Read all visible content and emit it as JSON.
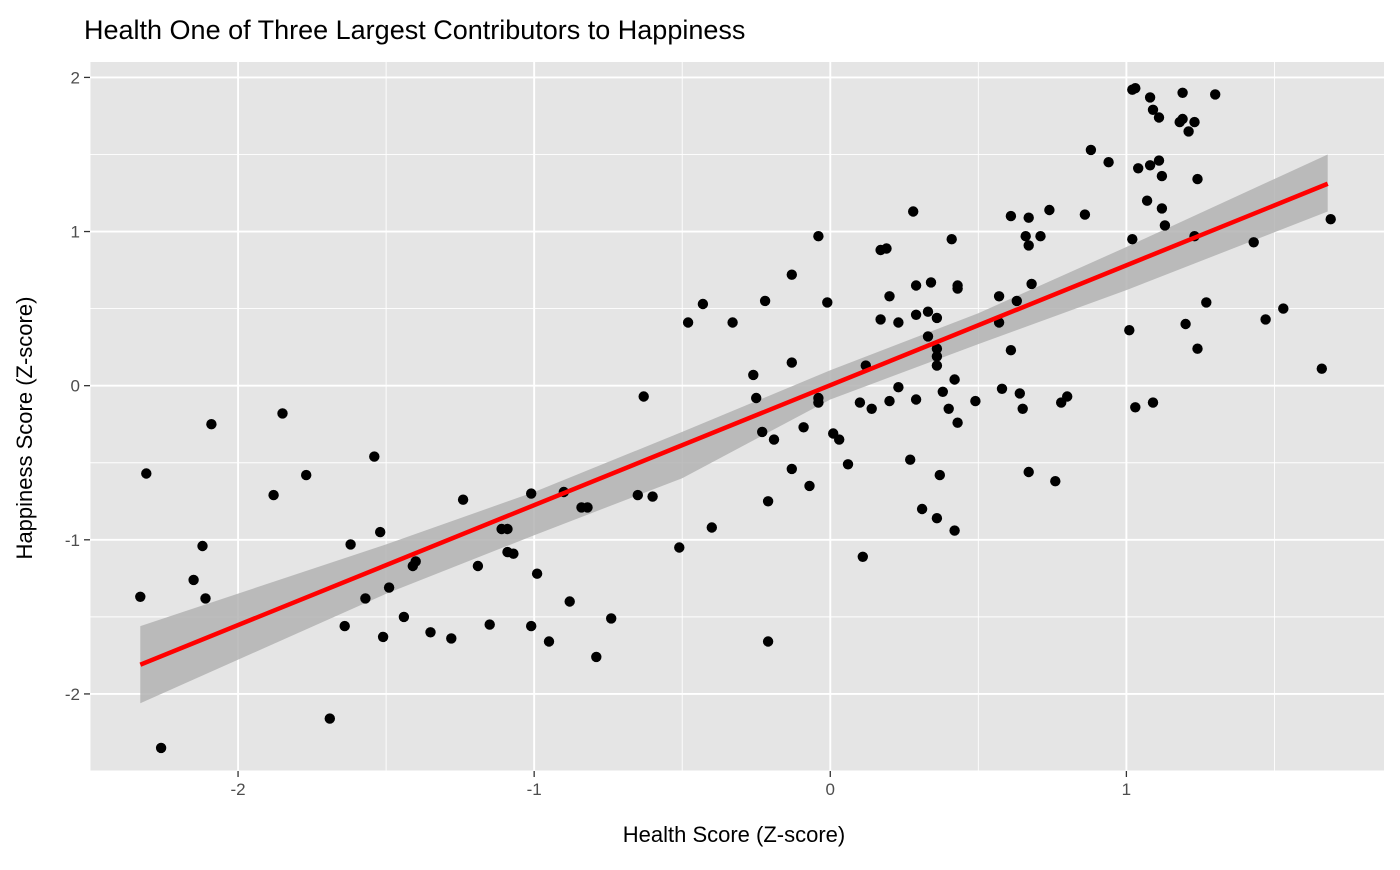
{
  "chart_data": {
    "type": "scatter",
    "title": "Health One of Three Largest Contributors to Happiness",
    "xlabel": "Health Score (Z-score)",
    "ylabel": "Happiness Score (Z-score)",
    "xlim": [
      -2.5,
      1.87
    ],
    "ylim": [
      -2.5,
      2.1
    ],
    "x_ticks": [
      -2,
      -1,
      0,
      1
    ],
    "y_ticks": [
      -2,
      -1,
      0,
      1,
      2
    ],
    "x_tick_labels": [
      "-2",
      "-1",
      "0",
      "1"
    ],
    "y_tick_labels": [
      "-2",
      "-1",
      "0",
      "1",
      "2"
    ],
    "grid": true,
    "colors": {
      "panel_background": "#e5e5e5",
      "grid": "#ffffff",
      "points": "#000000",
      "trend_line": "#ff0000",
      "confidence_band": "#b3b3b3"
    },
    "trend_line": {
      "x": [
        -2.33,
        1.68
      ],
      "y": [
        -1.81,
        1.31
      ]
    },
    "confidence_band": {
      "x": [
        -2.33,
        -1.5,
        -1.0,
        -0.5,
        0.0,
        0.5,
        1.0,
        1.68
      ],
      "lower": [
        -2.06,
        -1.35,
        -0.97,
        -0.6,
        -0.09,
        0.27,
        0.62,
        1.13
      ],
      "upper": [
        -1.56,
        -1.03,
        -0.69,
        -0.3,
        0.1,
        0.47,
        0.9,
        1.5
      ]
    },
    "points": [
      {
        "x": -2.33,
        "y": -1.37
      },
      {
        "x": -2.31,
        "y": -0.57
      },
      {
        "x": -2.26,
        "y": -2.35
      },
      {
        "x": -2.15,
        "y": -1.26
      },
      {
        "x": -2.12,
        "y": -1.04
      },
      {
        "x": -2.11,
        "y": -1.38
      },
      {
        "x": -2.09,
        "y": -0.25
      },
      {
        "x": -1.88,
        "y": -0.71
      },
      {
        "x": -1.85,
        "y": -0.18
      },
      {
        "x": -1.77,
        "y": -0.58
      },
      {
        "x": -1.69,
        "y": -2.16
      },
      {
        "x": -1.64,
        "y": -1.56
      },
      {
        "x": -1.62,
        "y": -1.03
      },
      {
        "x": -1.57,
        "y": -1.38
      },
      {
        "x": -1.54,
        "y": -0.46
      },
      {
        "x": -1.52,
        "y": -0.95
      },
      {
        "x": -1.51,
        "y": -1.63
      },
      {
        "x": -1.49,
        "y": -1.31
      },
      {
        "x": -1.44,
        "y": -1.5
      },
      {
        "x": -1.41,
        "y": -1.17
      },
      {
        "x": -1.4,
        "y": -1.14
      },
      {
        "x": -1.35,
        "y": -1.6
      },
      {
        "x": -1.28,
        "y": -1.64
      },
      {
        "x": -1.24,
        "y": -0.74
      },
      {
        "x": -1.19,
        "y": -1.17
      },
      {
        "x": -1.15,
        "y": -1.55
      },
      {
        "x": -1.11,
        "y": -0.93
      },
      {
        "x": -1.09,
        "y": -0.93
      },
      {
        "x": -1.09,
        "y": -1.08
      },
      {
        "x": -1.07,
        "y": -1.09
      },
      {
        "x": -1.01,
        "y": -0.7
      },
      {
        "x": -1.01,
        "y": -1.56
      },
      {
        "x": -0.99,
        "y": -1.22
      },
      {
        "x": -0.95,
        "y": -1.66
      },
      {
        "x": -0.9,
        "y": -0.69
      },
      {
        "x": -0.88,
        "y": -1.4
      },
      {
        "x": -0.84,
        "y": -0.79
      },
      {
        "x": -0.82,
        "y": -0.79
      },
      {
        "x": -0.79,
        "y": -1.76
      },
      {
        "x": -0.74,
        "y": -1.51
      },
      {
        "x": -0.65,
        "y": -0.71
      },
      {
        "x": -0.63,
        "y": -0.07
      },
      {
        "x": -0.6,
        "y": -0.72
      },
      {
        "x": -0.51,
        "y": -1.05
      },
      {
        "x": -0.48,
        "y": 0.41
      },
      {
        "x": -0.43,
        "y": 0.53
      },
      {
        "x": -0.4,
        "y": -0.92
      },
      {
        "x": -0.33,
        "y": 0.41
      },
      {
        "x": -0.26,
        "y": 0.07
      },
      {
        "x": -0.25,
        "y": -0.08
      },
      {
        "x": -0.23,
        "y": -0.3
      },
      {
        "x": -0.22,
        "y": 0.55
      },
      {
        "x": -0.21,
        "y": -0.75
      },
      {
        "x": -0.21,
        "y": -1.66
      },
      {
        "x": -0.19,
        "y": -0.35
      },
      {
        "x": -0.13,
        "y": 0.72
      },
      {
        "x": -0.13,
        "y": 0.15
      },
      {
        "x": -0.13,
        "y": -0.54
      },
      {
        "x": -0.09,
        "y": -0.27
      },
      {
        "x": -0.07,
        "y": -0.65
      },
      {
        "x": -0.04,
        "y": 0.97
      },
      {
        "x": -0.04,
        "y": -0.08
      },
      {
        "x": -0.04,
        "y": -0.11
      },
      {
        "x": -0.01,
        "y": 0.54
      },
      {
        "x": 0.01,
        "y": -0.31
      },
      {
        "x": 0.03,
        "y": -0.35
      },
      {
        "x": 0.06,
        "y": -0.51
      },
      {
        "x": 0.1,
        "y": -0.11
      },
      {
        "x": 0.11,
        "y": -1.11
      },
      {
        "x": 0.12,
        "y": 0.13
      },
      {
        "x": 0.14,
        "y": -0.15
      },
      {
        "x": 0.17,
        "y": 0.43
      },
      {
        "x": 0.17,
        "y": 0.88
      },
      {
        "x": 0.19,
        "y": 0.89
      },
      {
        "x": 0.2,
        "y": 0.58
      },
      {
        "x": 0.2,
        "y": -0.1
      },
      {
        "x": 0.23,
        "y": 0.41
      },
      {
        "x": 0.23,
        "y": -0.01
      },
      {
        "x": 0.27,
        "y": -0.48
      },
      {
        "x": 0.28,
        "y": 1.13
      },
      {
        "x": 0.29,
        "y": -0.09
      },
      {
        "x": 0.29,
        "y": 0.46
      },
      {
        "x": 0.29,
        "y": 0.65
      },
      {
        "x": 0.31,
        "y": -0.8
      },
      {
        "x": 0.33,
        "y": 0.48
      },
      {
        "x": 0.33,
        "y": 0.32
      },
      {
        "x": 0.34,
        "y": 0.67
      },
      {
        "x": 0.36,
        "y": 0.44
      },
      {
        "x": 0.36,
        "y": 0.24
      },
      {
        "x": 0.36,
        "y": 0.19
      },
      {
        "x": 0.36,
        "y": 0.13
      },
      {
        "x": 0.36,
        "y": -0.86
      },
      {
        "x": 0.37,
        "y": -0.58
      },
      {
        "x": 0.38,
        "y": -0.04
      },
      {
        "x": 0.4,
        "y": -0.15
      },
      {
        "x": 0.41,
        "y": 0.95
      },
      {
        "x": 0.42,
        "y": -0.94
      },
      {
        "x": 0.42,
        "y": 0.04
      },
      {
        "x": 0.43,
        "y": -0.24
      },
      {
        "x": 0.43,
        "y": 0.63
      },
      {
        "x": 0.43,
        "y": 0.65
      },
      {
        "x": 0.49,
        "y": -0.1
      },
      {
        "x": 0.57,
        "y": 0.41
      },
      {
        "x": 0.57,
        "y": 0.58
      },
      {
        "x": 0.58,
        "y": -0.02
      },
      {
        "x": 0.61,
        "y": 1.1
      },
      {
        "x": 0.61,
        "y": 0.23
      },
      {
        "x": 0.63,
        "y": 0.55
      },
      {
        "x": 0.64,
        "y": -0.05
      },
      {
        "x": 0.65,
        "y": -0.15
      },
      {
        "x": 0.66,
        "y": 0.97
      },
      {
        "x": 0.67,
        "y": -0.56
      },
      {
        "x": 0.67,
        "y": 1.09
      },
      {
        "x": 0.67,
        "y": 0.91
      },
      {
        "x": 0.68,
        "y": 0.66
      },
      {
        "x": 0.71,
        "y": 0.97
      },
      {
        "x": 0.74,
        "y": 1.14
      },
      {
        "x": 0.76,
        "y": -0.62
      },
      {
        "x": 0.78,
        "y": -0.11
      },
      {
        "x": 0.8,
        "y": -0.07
      },
      {
        "x": 0.86,
        "y": 1.11
      },
      {
        "x": 0.88,
        "y": 1.53
      },
      {
        "x": 0.94,
        "y": 1.45
      },
      {
        "x": 1.01,
        "y": 0.36
      },
      {
        "x": 1.02,
        "y": 1.92
      },
      {
        "x": 1.02,
        "y": 0.95
      },
      {
        "x": 1.03,
        "y": 1.93
      },
      {
        "x": 1.03,
        "y": -0.14
      },
      {
        "x": 1.04,
        "y": 1.41
      },
      {
        "x": 1.07,
        "y": 1.2
      },
      {
        "x": 1.08,
        "y": 1.43
      },
      {
        "x": 1.08,
        "y": 1.87
      },
      {
        "x": 1.09,
        "y": 1.79
      },
      {
        "x": 1.09,
        "y": -0.11
      },
      {
        "x": 1.11,
        "y": 1.46
      },
      {
        "x": 1.11,
        "y": 1.74
      },
      {
        "x": 1.12,
        "y": 1.36
      },
      {
        "x": 1.12,
        "y": 1.15
      },
      {
        "x": 1.13,
        "y": 1.04
      },
      {
        "x": 1.18,
        "y": 1.71
      },
      {
        "x": 1.19,
        "y": 1.9
      },
      {
        "x": 1.19,
        "y": 1.73
      },
      {
        "x": 1.2,
        "y": 0.4
      },
      {
        "x": 1.21,
        "y": 1.65
      },
      {
        "x": 1.23,
        "y": 1.71
      },
      {
        "x": 1.23,
        "y": 0.97
      },
      {
        "x": 1.24,
        "y": 1.34
      },
      {
        "x": 1.24,
        "y": 0.24
      },
      {
        "x": 1.27,
        "y": 0.54
      },
      {
        "x": 1.3,
        "y": 1.89
      },
      {
        "x": 1.43,
        "y": 0.93
      },
      {
        "x": 1.47,
        "y": 0.43
      },
      {
        "x": 1.53,
        "y": 0.5
      },
      {
        "x": 1.66,
        "y": 0.11
      },
      {
        "x": 1.69,
        "y": 1.08
      }
    ]
  }
}
